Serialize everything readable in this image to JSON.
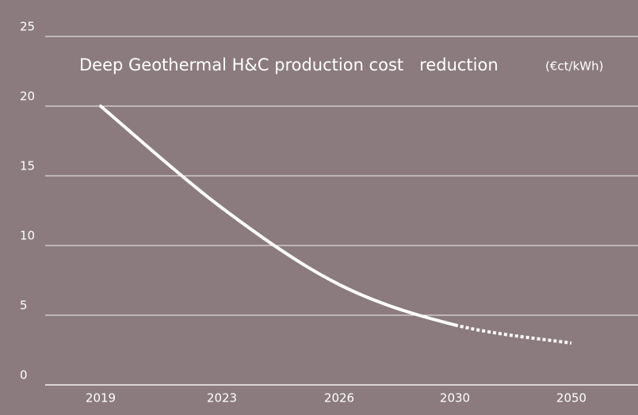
{
  "chart_data": {
    "type": "line",
    "title": "Deep Geothermal H&C production cost   reduction",
    "unit": "(€ct/kWh)",
    "categories": [
      "2019",
      "2023",
      "2026",
      "2030",
      "2050"
    ],
    "series": [
      {
        "color": "#ffffff",
        "values": [
          20,
          12.7,
          7.2,
          4.3,
          3.0
        ]
      }
    ],
    "dotted_from": 3,
    "ylim": [
      0,
      25
    ],
    "yticks": [
      0,
      5,
      10,
      15,
      20,
      25
    ],
    "grid": true
  }
}
